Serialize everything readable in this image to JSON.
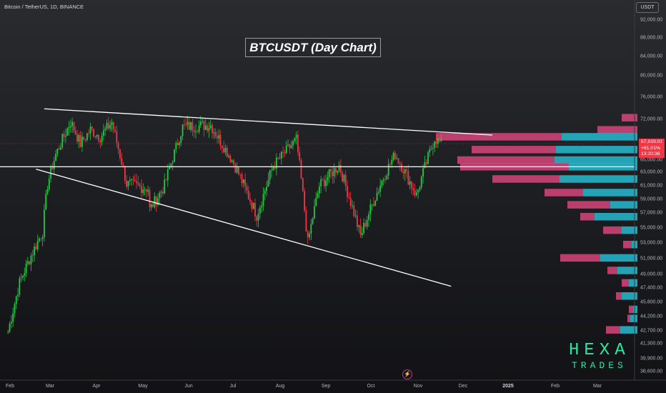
{
  "header": {
    "symbol": "Bitcoin / TetherUS, 1D, BINANCE"
  },
  "annotation": {
    "title": "BTCUSDT (Day Chart)"
  },
  "price_axis": {
    "unit": "USDT",
    "ticks": [
      "92,000.00",
      "88,000.00",
      "84,000.00",
      "80,000.00",
      "76,000.00",
      "72,000.00",
      "65,000.00",
      "63,000.00",
      "61,000.00",
      "59,000.00",
      "57,000.00",
      "55,000.00",
      "53,000.00",
      "51,000.00",
      "49,000.00",
      "47,400.00",
      "45,800.00",
      "44,200.00",
      "42,700.00",
      "41,300.00",
      "39,900.00",
      "38,600.00"
    ],
    "last_price": "67,819.01",
    "change_pct": "+61.01%",
    "countdown": "13:20:36"
  },
  "time_axis": {
    "ticks": [
      "Feb",
      "Mar",
      "Apr",
      "May",
      "Jun",
      "Jul",
      "Aug",
      "Sep",
      "Oct",
      "Nov",
      "Dec",
      "2025",
      "Feb",
      "Mar"
    ]
  },
  "brand": {
    "line1": "HEXA",
    "line2": "TRADES"
  },
  "icons": {
    "event": "lightning-icon"
  },
  "colors": {
    "up": "#22c943",
    "down": "#f23645",
    "vp_up": "#26b3c7",
    "vp_down": "#d6457a",
    "trendline": "#ffffff"
  },
  "chart_data": {
    "type": "candlestick",
    "symbol": "BTCUSDT",
    "timeframe": "1D",
    "x_range": [
      "2024-02",
      "2025-03"
    ],
    "ylim": [
      38000,
      94000
    ],
    "last_close": 67819.01,
    "key_points": [
      {
        "date": "2024-02-05",
        "close": 42600
      },
      {
        "date": "2024-02-12",
        "close": 48000
      },
      {
        "date": "2024-02-19",
        "close": 51400
      },
      {
        "date": "2024-02-26",
        "close": 54500
      },
      {
        "date": "2024-02-29",
        "close": 61200
      },
      {
        "date": "2024-03-05",
        "close": 66000
      },
      {
        "date": "2024-03-14",
        "close": 71600
      },
      {
        "date": "2024-03-20",
        "close": 67800
      },
      {
        "date": "2024-03-26",
        "close": 70200
      },
      {
        "date": "2024-04-01",
        "close": 69000
      },
      {
        "date": "2024-04-08",
        "close": 71500
      },
      {
        "date": "2024-04-17",
        "close": 61300
      },
      {
        "date": "2024-04-30",
        "close": 60600
      },
      {
        "date": "2024-05-01",
        "close": 57500
      },
      {
        "date": "2024-05-10",
        "close": 61000
      },
      {
        "date": "2024-05-21",
        "close": 70700
      },
      {
        "date": "2024-06-07",
        "close": 71000
      },
      {
        "date": "2024-06-20",
        "close": 65000
      },
      {
        "date": "2024-07-05",
        "close": 56700
      },
      {
        "date": "2024-07-15",
        "close": 64000
      },
      {
        "date": "2024-07-29",
        "close": 68500
      },
      {
        "date": "2024-08-05",
        "close": 53000
      },
      {
        "date": "2024-08-12",
        "close": 61000
      },
      {
        "date": "2024-08-24",
        "close": 64100
      },
      {
        "date": "2024-09-06",
        "close": 53900
      },
      {
        "date": "2024-09-18",
        "close": 61200
      },
      {
        "date": "2024-09-27",
        "close": 66000
      },
      {
        "date": "2024-10-10",
        "close": 59600
      },
      {
        "date": "2024-10-21",
        "close": 68800
      },
      {
        "date": "2024-10-25",
        "close": 67819.01
      }
    ],
    "horizontal_level": 63900,
    "trendlines": [
      {
        "name": "upper",
        "from": [
          "2024-02-27",
          73900
        ],
        "to": [
          "2024-11-25",
          69300
        ]
      },
      {
        "name": "lower",
        "from": [
          "2024-02-22",
          63500
        ],
        "to": [
          "2024-10-31",
          47600
        ]
      }
    ],
    "volume_profile": [
      {
        "price": 72300,
        "up": 0,
        "down": 22
      },
      {
        "price": 70200,
        "up": 0,
        "down": 56
      },
      {
        "price": 69000,
        "up": 106,
        "down": 176
      },
      {
        "price": 66800,
        "up": 114,
        "down": 118
      },
      {
        "price": 65000,
        "up": 116,
        "down": 136
      },
      {
        "price": 63900,
        "up": 96,
        "down": 152
      },
      {
        "price": 62000,
        "up": 109,
        "down": 94
      },
      {
        "price": 60000,
        "up": 76,
        "down": 54
      },
      {
        "price": 58200,
        "up": 38,
        "down": 60
      },
      {
        "price": 56500,
        "up": 60,
        "down": 20
      },
      {
        "price": 54700,
        "up": 22,
        "down": 26
      },
      {
        "price": 52800,
        "up": 8,
        "down": 12
      },
      {
        "price": 51100,
        "up": 52,
        "down": 56
      },
      {
        "price": 49500,
        "up": 28,
        "down": 14
      },
      {
        "price": 48000,
        "up": 12,
        "down": 10
      },
      {
        "price": 46500,
        "up": 22,
        "down": 8
      },
      {
        "price": 45000,
        "up": 6,
        "down": 6
      },
      {
        "price": 44000,
        "up": 10,
        "down": 4
      },
      {
        "price": 42800,
        "up": 24,
        "down": 20
      }
    ]
  }
}
